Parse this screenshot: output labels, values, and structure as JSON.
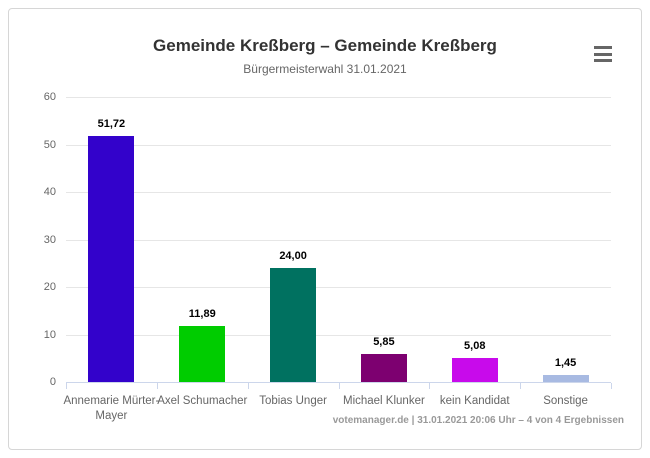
{
  "card": {
    "title": "Gemeinde Kreßberg – Gemeinde Kreßberg",
    "subtitle": "Bürgermeisterwahl 31.01.2021",
    "credits": "votemanager.de | 31.01.2021 20:06 Uhr – 4 von 4 Ergebnissen",
    "menu_icon": "hamburger-menu-icon"
  },
  "chart_data": {
    "type": "bar",
    "title": "Gemeinde Kreßberg – Gemeinde Kreßberg",
    "subtitle": "Bürgermeisterwahl 31.01.2021",
    "categories": [
      "Annemarie Mürter-Mayer",
      "Axel Schumacher",
      "Tobias Unger",
      "Michael Klunker",
      "kein Kandidat",
      "Sonstige"
    ],
    "values": [
      51.72,
      11.89,
      24.0,
      5.85,
      5.08,
      1.45
    ],
    "value_labels": [
      "51,72",
      "11,89",
      "24,00",
      "5,85",
      "5,08",
      "1,45"
    ],
    "bar_colors": [
      "#3302cb",
      "#00cc00",
      "#007160",
      "#7d0070",
      "#c80aeb",
      "#a8bae2"
    ],
    "xlabel": "",
    "ylabel": "",
    "ylim": [
      0,
      60
    ],
    "yticks": [
      0,
      10,
      20,
      30,
      40,
      50,
      60
    ],
    "grid": true,
    "legend": "none",
    "decimal_separator": ","
  },
  "colors": {
    "grid": "#e6e6e6",
    "axis_line": "#ccd6eb",
    "tick_label": "#666666",
    "title": "#333333",
    "subtitle": "#666666",
    "data_label": "#000000",
    "credits": "#999999",
    "menu_icon": "#666666",
    "card_border": "#d6d6d6",
    "background": "#ffffff"
  }
}
